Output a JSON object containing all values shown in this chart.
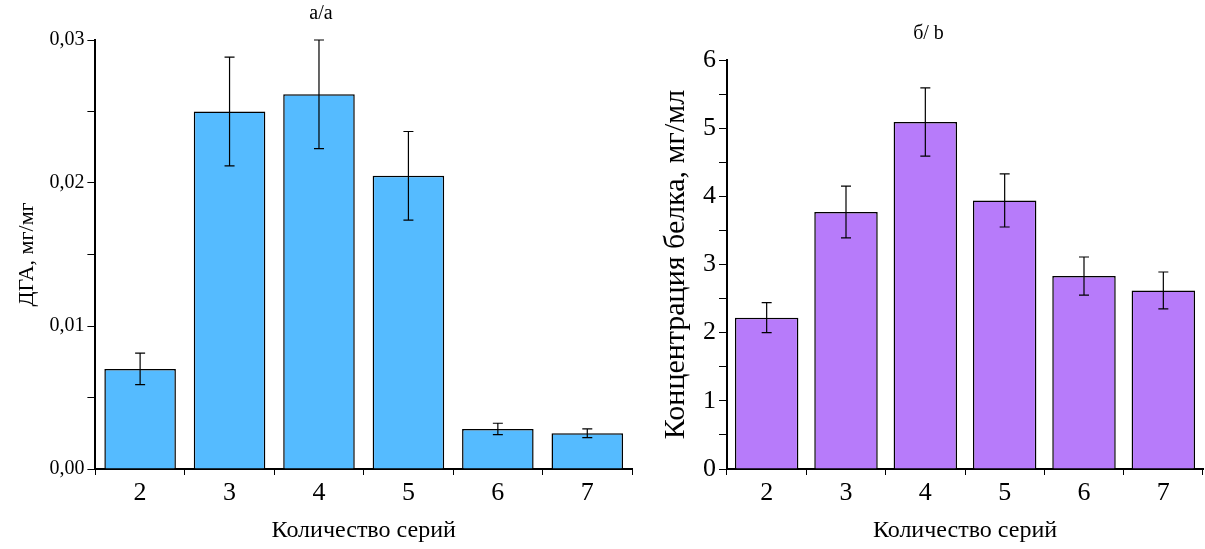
{
  "chart_data": [
    {
      "type": "bar",
      "title": "а/a",
      "xlabel": "Количество серий",
      "ylabel": "ДГА, мг/мг",
      "categories": [
        "2",
        "3",
        "4",
        "5",
        "6",
        "7"
      ],
      "color": "#55bbff",
      "values": [
        0.007,
        0.025,
        0.0262,
        0.0205,
        0.0028,
        0.0025
      ],
      "errors": [
        0.0011,
        0.0038,
        0.0038,
        0.0031,
        0.0004,
        0.0003
      ],
      "ylim": [
        0,
        0.03
      ],
      "yticks": [
        {
          "value": 0,
          "label": "0,00"
        },
        {
          "value": 0.005,
          "label": null
        },
        {
          "value": 0.01,
          "label": "0,01"
        },
        {
          "value": 0.015,
          "label": null
        },
        {
          "value": 0.02,
          "label": "0,02"
        },
        {
          "value": 0.025,
          "label": null
        },
        {
          "value": 0.03,
          "label": "0,03"
        }
      ]
    },
    {
      "type": "bar",
      "title": "б/ b",
      "xlabel": "Количество серий",
      "ylabel": "Концентрация белка, мг/мл",
      "categories": [
        "2",
        "3",
        "4",
        "5",
        "6",
        "7"
      ],
      "color": "#b77bfa",
      "values": [
        2.22,
        3.77,
        5.09,
        3.94,
        2.83,
        2.62
      ],
      "errors": [
        0.22,
        0.38,
        0.5,
        0.39,
        0.28,
        0.27
      ],
      "ylim": [
        0,
        6
      ],
      "yticks": [
        0,
        {
          "value": 0.5,
          "label": null
        },
        1,
        {
          "value": 1.5,
          "label": null
        },
        2,
        {
          "value": 2.5,
          "label": null
        },
        3,
        {
          "value": 3.5,
          "label": null
        },
        4,
        {
          "value": 4.5,
          "label": null
        },
        5,
        {
          "value": 5.5,
          "label": null
        },
        6
      ]
    }
  ]
}
